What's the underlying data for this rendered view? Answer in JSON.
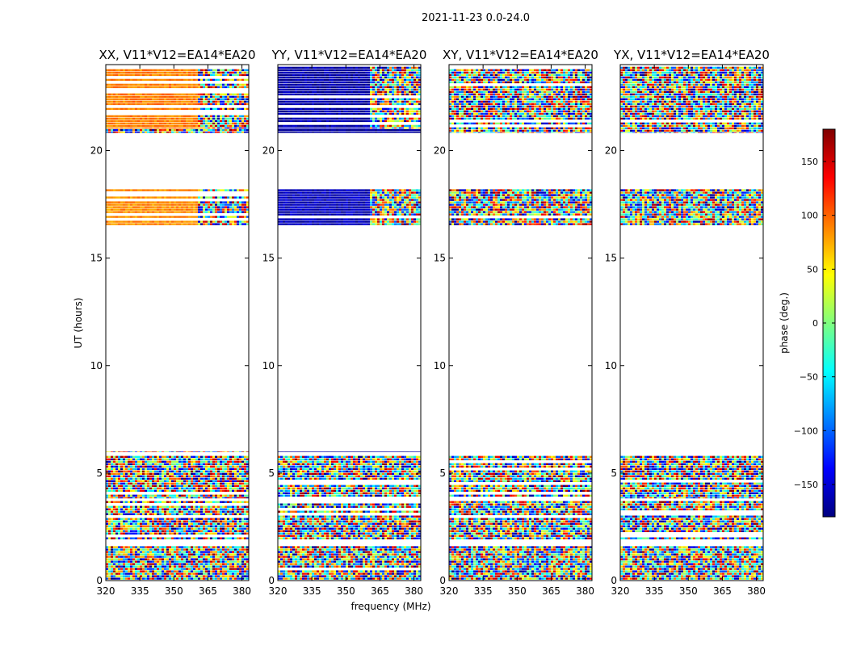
{
  "figure": {
    "suptitle": "2021-11-23 0.0-24.0",
    "xlabel": "frequency (MHz)",
    "ylabel": "UT (hours)",
    "colorbar_label": "phase (deg.)"
  },
  "chart_data": {
    "type": "heatmap",
    "colormap": "jet",
    "clim": [
      -180,
      180
    ],
    "colorbar_ticks": [
      150,
      100,
      50,
      0,
      -50,
      -100,
      -150
    ],
    "xlim": [
      320,
      383
    ],
    "ylim": [
      0,
      24
    ],
    "xticks": [
      320,
      335,
      350,
      365,
      380
    ],
    "yticks": [
      0,
      5,
      10,
      15,
      20
    ],
    "panels": [
      {
        "title": "XX, V11*V12=EA14*EA20",
        "kind": "noise",
        "bands": [
          {
            "ut": [
              0.0,
              1.6
            ],
            "phase": null
          },
          {
            "ut": [
              1.9,
              3.7
            ],
            "phase": null
          },
          {
            "ut": [
              3.8,
              5.8
            ],
            "phase": null
          },
          {
            "ut": [
              5.95,
              6.0
            ],
            "phase": null
          },
          {
            "ut": [
              16.5,
              18.2
            ],
            "phase": 85,
            "freq_coherent_to": 360,
            "note": "orange-yellow stripes"
          },
          {
            "ut": [
              20.8,
              21.0
            ],
            "phase": null
          },
          {
            "ut": [
              21.0,
              23.9
            ],
            "phase": 90,
            "freq_coherent_to": 360,
            "note": "orange-yellow stripes"
          }
        ]
      },
      {
        "title": "YY, V11*V12=EA14*EA20",
        "kind": "noise",
        "bands": [
          {
            "ut": [
              0.0,
              1.6
            ],
            "phase": null
          },
          {
            "ut": [
              1.9,
              3.7
            ],
            "phase": null
          },
          {
            "ut": [
              3.8,
              5.8
            ],
            "phase": null
          },
          {
            "ut": [
              5.95,
              6.0
            ],
            "phase": -170
          },
          {
            "ut": [
              16.5,
              18.2
            ],
            "phase": -160,
            "freq_coherent_to": 360,
            "note": "blue stripes"
          },
          {
            "ut": [
              20.8,
              21.0
            ],
            "phase": -170
          },
          {
            "ut": [
              21.0,
              23.9
            ],
            "phase": -165,
            "freq_coherent_to": 360,
            "note": "blue/dark-red stripes"
          }
        ]
      },
      {
        "title": "XY, V11*V12=EA14*EA20",
        "kind": "noise",
        "bands": [
          {
            "ut": [
              0.0,
              1.6
            ],
            "phase": null
          },
          {
            "ut": [
              1.9,
              3.7
            ],
            "phase": null
          },
          {
            "ut": [
              3.8,
              5.8
            ],
            "phase": null
          },
          {
            "ut": [
              16.5,
              18.2
            ],
            "phase": null
          },
          {
            "ut": [
              20.8,
              23.9
            ],
            "phase": null
          }
        ]
      },
      {
        "title": "YX, V11*V12=EA14*EA20",
        "kind": "noise",
        "bands": [
          {
            "ut": [
              0.0,
              1.6
            ],
            "phase": null
          },
          {
            "ut": [
              1.9,
              3.7
            ],
            "phase": null
          },
          {
            "ut": [
              3.8,
              5.8
            ],
            "phase": null
          },
          {
            "ut": [
              16.5,
              18.2
            ],
            "phase": null
          },
          {
            "ut": [
              20.8,
              23.9
            ],
            "phase": null
          }
        ]
      }
    ]
  }
}
